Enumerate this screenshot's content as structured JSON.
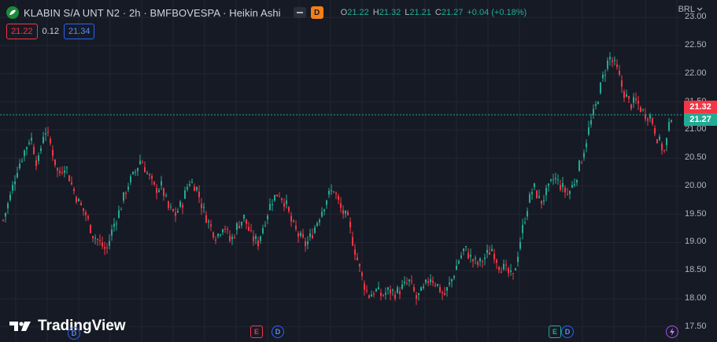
{
  "legend": {
    "symbol_title": "KLABIN S/A UNT N2 · 2h · BMFBOVESPA · Heikin Ashi",
    "badge": "D",
    "open_label": "O",
    "open": "21.22",
    "high_label": "H",
    "high": "21.32",
    "low_label": "L",
    "low": "21.21",
    "close_label": "C",
    "close": "21.27",
    "change": "+0.04 (+0.18%)"
  },
  "quote": {
    "sell": "21.22",
    "spread": "0.12",
    "buy": "21.34"
  },
  "currency": "BRL",
  "markers": {
    "dividend": "D",
    "earnings": "E"
  },
  "brand": {
    "name": "TradingView"
  },
  "price_labels": {
    "high_price": "21.32",
    "last_price": "21.27"
  },
  "colors": {
    "up": "#22AB94",
    "down": "#F23645",
    "background": "#161A25",
    "grid": "#232632"
  },
  "chart_data": {
    "type": "candlestick",
    "style": "Heikin Ashi",
    "y_ticks": [
      "23.00",
      "22.50",
      "22.00",
      "21.50",
      "21.00",
      "20.50",
      "20.00",
      "19.50",
      "19.00",
      "18.50",
      "18.00",
      "17.50"
    ],
    "y_values": [
      23.0,
      22.5,
      22.0,
      21.5,
      21.0,
      20.5,
      20.0,
      19.5,
      19.0,
      18.5,
      18.0,
      17.5
    ],
    "ylim": [
      17.35,
      23.1
    ],
    "grid": true,
    "path": [
      19.4,
      19.8,
      20.3,
      20.6,
      20.9,
      20.35,
      21.05,
      20.7,
      20.2,
      20.4,
      20.0,
      19.7,
      19.5,
      19.15,
      19.0,
      18.85,
      19.3,
      19.6,
      20.0,
      20.2,
      20.5,
      20.2,
      19.95,
      20.0,
      19.6,
      19.5,
      19.7,
      20.1,
      20.0,
      19.6,
      19.3,
      19.1,
      19.35,
      19.0,
      19.3,
      19.45,
      19.1,
      19.0,
      19.4,
      19.75,
      19.9,
      19.7,
      19.3,
      19.1,
      18.95,
      19.2,
      19.5,
      19.8,
      19.95,
      19.6,
      19.4,
      18.9,
      18.4,
      18.05,
      18.15,
      18.05,
      18.15,
      18.1,
      18.2,
      18.3,
      18.0,
      18.15,
      18.4,
      18.25,
      18.05,
      18.3,
      18.65,
      18.9,
      18.7,
      18.6,
      18.75,
      18.9,
      18.6,
      18.5,
      18.35,
      19.0,
      19.6,
      20.0,
      19.7,
      19.9,
      20.15,
      20.0,
      19.85,
      20.1,
      20.5,
      21.0,
      21.4,
      21.9,
      22.3,
      22.1,
      21.7,
      21.45,
      21.5,
      21.3,
      21.25,
      20.85,
      20.6,
      21.27
    ]
  }
}
